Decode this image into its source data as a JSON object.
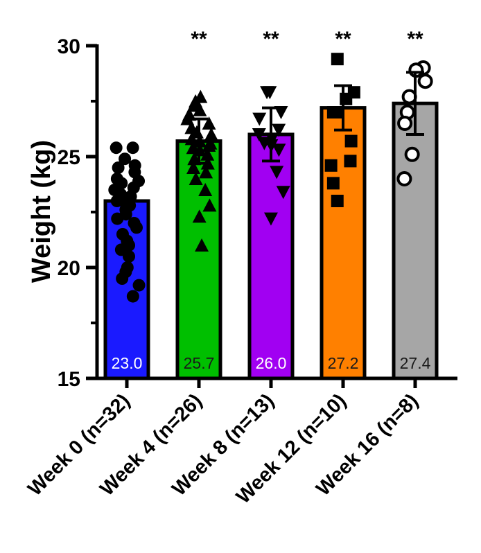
{
  "chart_data": {
    "type": "bar",
    "title": "",
    "xlabel": "",
    "ylabel": "Weight (kg)",
    "ylim": [
      15,
      30
    ],
    "yticks": [
      15,
      20,
      25,
      30
    ],
    "grid": false,
    "categories": [
      "Week 0 (n=32)",
      "Week 4 (n=26)",
      "Week 8 (n=13)",
      "Week 12 (n=10)",
      "Week 16 (n=8)"
    ],
    "values": [
      23.0,
      25.7,
      26.0,
      27.2,
      27.4
    ],
    "value_labels": [
      "23.0",
      "25.7",
      "26.0",
      "27.2",
      "27.4"
    ],
    "sd": [
      0,
      1.0,
      1.2,
      1.0,
      1.4
    ],
    "significance": [
      "",
      "**",
      "**",
      "**",
      "**"
    ],
    "colors": [
      "#1a1aff",
      "#00bf00",
      "#a100f2",
      "#ff8000",
      "#a6a6a6"
    ],
    "value_label_colors": [
      "#ffffff",
      "#1a1a1a",
      "#ffffff",
      "#1a1a1a",
      "#1a1a1a"
    ],
    "markers": [
      "circle",
      "triangle-up",
      "triangle-down",
      "square",
      "circle-open"
    ],
    "points": [
      [
        25.4,
        25.4,
        24.9,
        24.6,
        24.5,
        24.3,
        24.0,
        23.9,
        23.8,
        23.6,
        23.5,
        23.3,
        23.2,
        23.1,
        23.0,
        23.0,
        22.8,
        22.6,
        22.4,
        22.2,
        22.0,
        21.8,
        21.5,
        21.2,
        21.0,
        20.8,
        20.5,
        20.0,
        19.8,
        19.5,
        19.2,
        18.7
      ],
      [
        27.7,
        27.5,
        27.3,
        27.1,
        26.9,
        26.7,
        26.5,
        26.3,
        26.1,
        26.0,
        25.8,
        25.7,
        25.6,
        25.5,
        25.4,
        25.3,
        25.1,
        24.9,
        24.7,
        24.5,
        24.3,
        24.0,
        23.5,
        22.8,
        22.3,
        21.0
      ],
      [
        27.9,
        27.9,
        27.0,
        26.7,
        26.2,
        26.0,
        25.8,
        25.6,
        25.5,
        25.3,
        24.3,
        23.4,
        22.2
      ],
      [
        29.4,
        27.9,
        27.6,
        27.0,
        27.0,
        25.7,
        24.8,
        24.6,
        23.8,
        23.0
      ],
      [
        29.0,
        28.9,
        28.4,
        27.7,
        27.0,
        26.5,
        25.1,
        24.0
      ]
    ]
  }
}
